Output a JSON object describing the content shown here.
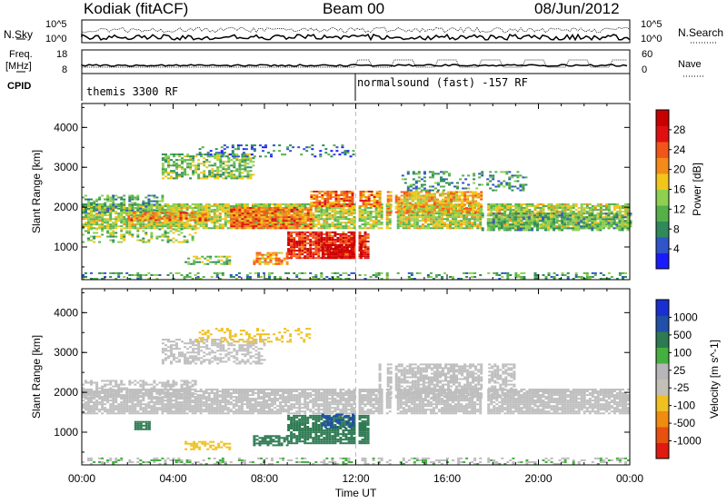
{
  "header": {
    "station": "Kodiak (fitACF)",
    "beam": "Beam 00",
    "date": "08/Jun/2012"
  },
  "summary_panels": {
    "nsky_label": "N.Sky",
    "nsky_ticks": [
      "10^5",
      "10^0"
    ],
    "nsearch_label": "N.Search",
    "nsearch_ticks": [
      "10^5",
      "10^0"
    ],
    "freq_label_line1": "Freq.",
    "freq_label_line2": "[MHz]",
    "freq_ticks": [
      "18",
      "8"
    ],
    "nave_label": "Nave",
    "nave_ticks": [
      "60",
      "0"
    ],
    "cpid_label": "CPID",
    "cpid_segments": [
      "themis 3300 RF",
      "normalsound (fast) -157 RF"
    ],
    "cpid_change_hour": 12.0
  },
  "colors": {
    "power_scale": [
      "#1a1aff",
      "#2f55c8",
      "#2e8a5a",
      "#55b04a",
      "#8ed050",
      "#f2c51a",
      "#f38a1a",
      "#f2551a",
      "#e01010",
      "#c80000"
    ],
    "velocity_scale": [
      "#1a2fd0",
      "#2050a8",
      "#2e7a52",
      "#45b040",
      "#b6b6b6",
      "#c4c0b6",
      "#f0c020",
      "#f08c10",
      "#e85010",
      "#e01a10"
    ],
    "velocity_ground": "#bebebe"
  },
  "chart_data": [
    {
      "type": "heatmap",
      "panel": "power",
      "title": "",
      "ylabel": "Slant Range [km]",
      "xlabel": "Time UT",
      "xlim": [
        0,
        24
      ],
      "ylim": [
        180,
        4600
      ],
      "yticks": [
        "1000",
        "2000",
        "3000",
        "4000"
      ],
      "xticks": [
        "00:00",
        "04:00",
        "08:00",
        "12:00",
        "16:00",
        "20:00",
        "00:00"
      ],
      "colorbar_label": "Power [dB]",
      "colorbar_ticks": [
        "28",
        "24",
        "20",
        "16",
        "12",
        "8",
        "4"
      ],
      "colorbar_range": [
        0,
        30
      ],
      "data_gaps_hours": [
        12.0,
        13.2,
        13.6,
        17.6
      ],
      "echo_regions": [
        {
          "x": [
            0.0,
            24.0
          ],
          "y": [
            1450,
            2050
          ],
          "power": 14,
          "density": 0.85
        },
        {
          "x": [
            0.0,
            3.5
          ],
          "y": [
            1850,
            2300
          ],
          "power": 9,
          "density": 0.55
        },
        {
          "x": [
            0.0,
            5.0
          ],
          "y": [
            1100,
            1450
          ],
          "power": 12,
          "density": 0.35
        },
        {
          "x": [
            2.0,
            5.5
          ],
          "y": [
            1650,
            1850
          ],
          "power": 20,
          "density": 0.7
        },
        {
          "x": [
            3.5,
            7.5
          ],
          "y": [
            2700,
            3300
          ],
          "power": 12,
          "density": 0.6
        },
        {
          "x": [
            6.5,
            10.0
          ],
          "y": [
            1450,
            2000
          ],
          "power": 21,
          "density": 0.9
        },
        {
          "x": [
            9.0,
            12.5
          ],
          "y": [
            700,
            1350
          ],
          "power": 25,
          "density": 0.9
        },
        {
          "x": [
            10.5,
            12.2
          ],
          "y": [
            700,
            1050
          ],
          "power": 29,
          "density": 0.85
        },
        {
          "x": [
            10.0,
            13.0
          ],
          "y": [
            2000,
            2400
          ],
          "power": 21,
          "density": 0.8
        },
        {
          "x": [
            7.5,
            9.0
          ],
          "y": [
            550,
            850
          ],
          "power": 19,
          "density": 0.7
        },
        {
          "x": [
            4.5,
            6.5
          ],
          "y": [
            550,
            750
          ],
          "power": 12,
          "density": 0.5
        },
        {
          "x": [
            13.0,
            17.5
          ],
          "y": [
            1850,
            2400
          ],
          "power": 18,
          "density": 0.8
        },
        {
          "x": [
            14.0,
            19.5
          ],
          "y": [
            2400,
            2900
          ],
          "power": 8,
          "density": 0.35
        },
        {
          "x": [
            5.0,
            12.0
          ],
          "y": [
            3250,
            3550
          ],
          "power": 6,
          "density": 0.25
        },
        {
          "x": [
            17.5,
            24.0
          ],
          "y": [
            1400,
            1850
          ],
          "power": 10,
          "density": 0.6
        },
        {
          "x": [
            0.0,
            24.0
          ],
          "y": [
            180,
            330
          ],
          "power": 9,
          "density": 0.35
        }
      ]
    },
    {
      "type": "heatmap",
      "panel": "velocity",
      "title": "",
      "ylabel": "Slant Range [km]",
      "xlabel": "Time UT",
      "xlim": [
        0,
        24
      ],
      "ylim": [
        180,
        4600
      ],
      "yticks": [
        "1000",
        "2000",
        "3000",
        "4000"
      ],
      "xticks": [
        "00:00",
        "04:00",
        "08:00",
        "12:00",
        "16:00",
        "20:00",
        "00:00"
      ],
      "colorbar_label": "Velocity [m s^-1]",
      "colorbar_ticks": [
        "1000",
        "500",
        "100",
        "25",
        "-25",
        "-100",
        "-500",
        "-1000"
      ],
      "colorbar_range": [
        -1000,
        1000
      ],
      "data_gaps_hours": [
        12.0,
        13.2,
        13.6,
        17.6
      ],
      "echo_regions": [
        {
          "x": [
            0.0,
            24.0
          ],
          "y": [
            1450,
            2050
          ],
          "velocity": 0,
          "density": 0.85
        },
        {
          "x": [
            0.0,
            5.0
          ],
          "y": [
            1850,
            2300
          ],
          "velocity": 0,
          "density": 0.5
        },
        {
          "x": [
            3.5,
            8.0
          ],
          "y": [
            2700,
            3300
          ],
          "velocity": 0,
          "density": 0.5
        },
        {
          "x": [
            13.0,
            19.0
          ],
          "y": [
            1850,
            2700
          ],
          "velocity": 0,
          "density": 0.7
        },
        {
          "x": [
            9.0,
            12.5
          ],
          "y": [
            700,
            1400
          ],
          "velocity": 150,
          "density": 0.85
        },
        {
          "x": [
            10.5,
            12.0
          ],
          "y": [
            1100,
            1450
          ],
          "velocity": 600,
          "density": 0.5
        },
        {
          "x": [
            7.5,
            9.0
          ],
          "y": [
            650,
            900
          ],
          "velocity": 200,
          "density": 0.7
        },
        {
          "x": [
            2.3,
            3.0
          ],
          "y": [
            1050,
            1250
          ],
          "velocity": 150,
          "density": 0.8
        },
        {
          "x": [
            4.5,
            6.5
          ],
          "y": [
            550,
            750
          ],
          "velocity": -180,
          "density": 0.6
        },
        {
          "x": [
            5.0,
            10.0
          ],
          "y": [
            3250,
            3600
          ],
          "velocity": -150,
          "density": 0.3
        },
        {
          "x": [
            0.0,
            24.0
          ],
          "y": [
            180,
            330
          ],
          "velocity": 20,
          "density": 0.35
        }
      ]
    }
  ]
}
